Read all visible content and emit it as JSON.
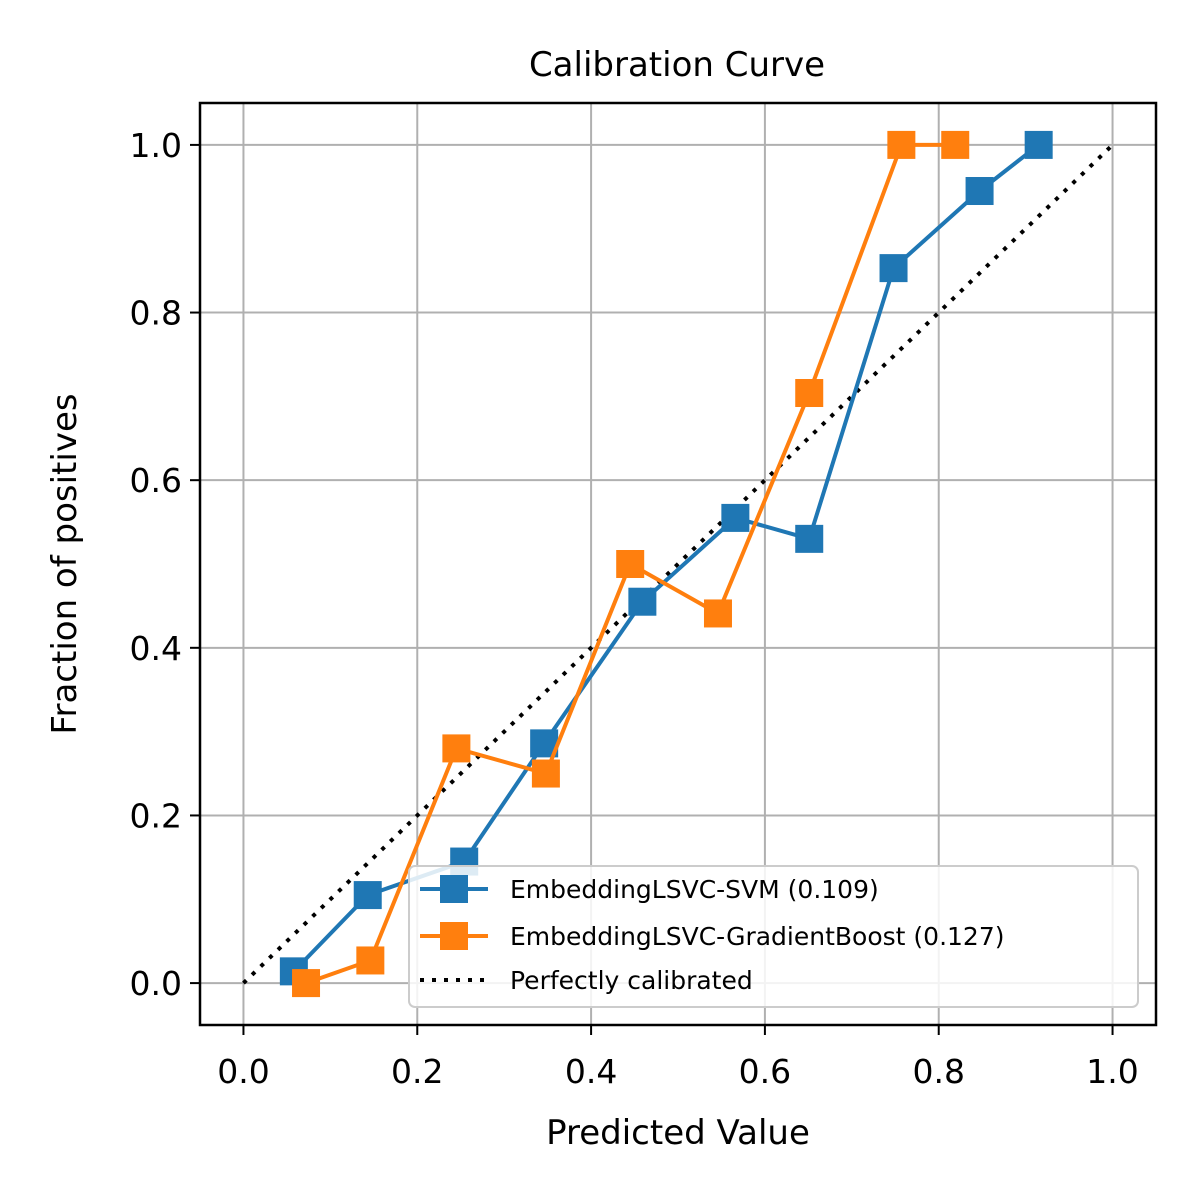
{
  "chart_data": {
    "type": "line",
    "title": "Calibration Curve",
    "xlabel": "Predicted Value",
    "ylabel": "Fraction of positives",
    "xlim": [
      -0.05,
      1.05
    ],
    "ylim": [
      -0.05,
      1.05
    ],
    "xticks": [
      "0.0",
      "0.2",
      "0.4",
      "0.6",
      "0.8",
      "1.0"
    ],
    "yticks": [
      "0.0",
      "0.2",
      "0.4",
      "0.6",
      "0.8",
      "1.0"
    ],
    "grid": true,
    "legend_position": "lower-right",
    "series": [
      {
        "name": "EmbeddingLSVC-SVM (0.109)",
        "color": "#1f77b4",
        "marker": "square",
        "x": [
          0.058,
          0.143,
          0.254,
          0.346,
          0.459,
          0.566,
          0.651,
          0.748,
          0.847,
          0.915
        ],
        "y": [
          0.014,
          0.105,
          0.145,
          0.286,
          0.455,
          0.555,
          0.53,
          0.853,
          0.945,
          1.0
        ]
      },
      {
        "name": "EmbeddingLSVC-GradientBoost (0.127)",
        "color": "#ff7f0e",
        "marker": "square",
        "x": [
          0.072,
          0.146,
          0.245,
          0.348,
          0.445,
          0.546,
          0.651,
          0.757,
          0.819
        ],
        "y": [
          0.0,
          0.027,
          0.28,
          0.25,
          0.5,
          0.441,
          0.704,
          1.0,
          1.0
        ]
      },
      {
        "name": "Perfectly calibrated",
        "color": "#000000",
        "style": "dotted",
        "x": [
          0.0,
          1.0
        ],
        "y": [
          0.0,
          1.0
        ]
      }
    ]
  }
}
